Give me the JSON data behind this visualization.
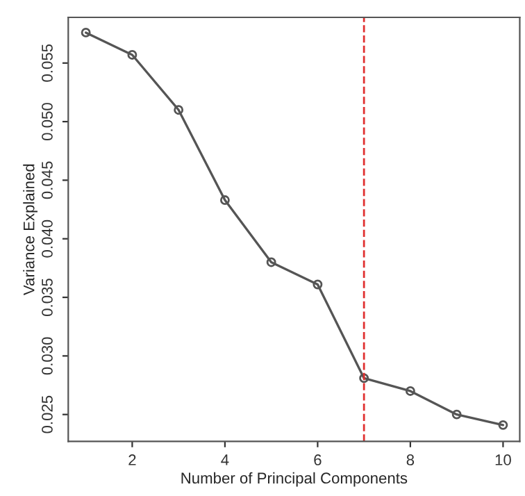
{
  "chart_data": {
    "type": "line",
    "xlabel": "Number of Principal Components",
    "ylabel": "Variance Explained",
    "x": [
      1,
      2,
      3,
      4,
      5,
      6,
      7,
      8,
      9,
      10
    ],
    "series": [
      {
        "color": "#555555",
        "values": [
          0.0576,
          0.0557,
          0.051,
          0.0433,
          0.038,
          0.0361,
          0.0281,
          0.027,
          0.025,
          0.0241
        ]
      }
    ],
    "marker": "circle",
    "xlim": [
      0.62,
      10.36
    ],
    "ylim": [
      0.0227,
      0.0589
    ],
    "xticks": [
      2,
      4,
      6,
      8,
      10
    ],
    "yticks": [
      {
        "value": 0.025,
        "label": "0.025"
      },
      {
        "value": 0.03,
        "label": "0.030"
      },
      {
        "value": 0.035,
        "label": "0.035"
      },
      {
        "value": 0.04,
        "label": "0.040"
      },
      {
        "value": 0.045,
        "label": "0.045"
      },
      {
        "value": 0.05,
        "label": "0.050"
      },
      {
        "value": 0.055,
        "label": "0.055"
      }
    ],
    "ref_lines": [
      {
        "axis": "x",
        "value": 7,
        "color": "#e03030",
        "line_style": "dashed"
      }
    ],
    "grid": false
  }
}
